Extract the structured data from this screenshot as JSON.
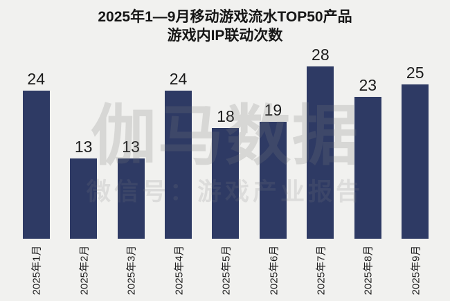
{
  "chart_data": {
    "type": "bar",
    "title_line1": "2025年1—9月移动游戏流水TOP50产品",
    "title_line2": "游戏内IP联动次数",
    "categories": [
      "2025年1月",
      "2025年2月",
      "2025年3月",
      "2025年4月",
      "2025年5月",
      "2025年6月",
      "2025年7月",
      "2025年8月",
      "2025年9月"
    ],
    "values": [
      24,
      13,
      13,
      24,
      18,
      19,
      28,
      23,
      25
    ],
    "xlabel": "",
    "ylabel": "",
    "ylim": [
      0,
      30
    ],
    "grid": false,
    "legend": false,
    "value_labels_shown": true,
    "bar_color": "#2e3a64",
    "background_color": "#f1f1ef",
    "label_color": "#1b1b1b"
  },
  "watermark": {
    "main": "伽马数据",
    "sub": "微信号：游戏产业报告"
  }
}
